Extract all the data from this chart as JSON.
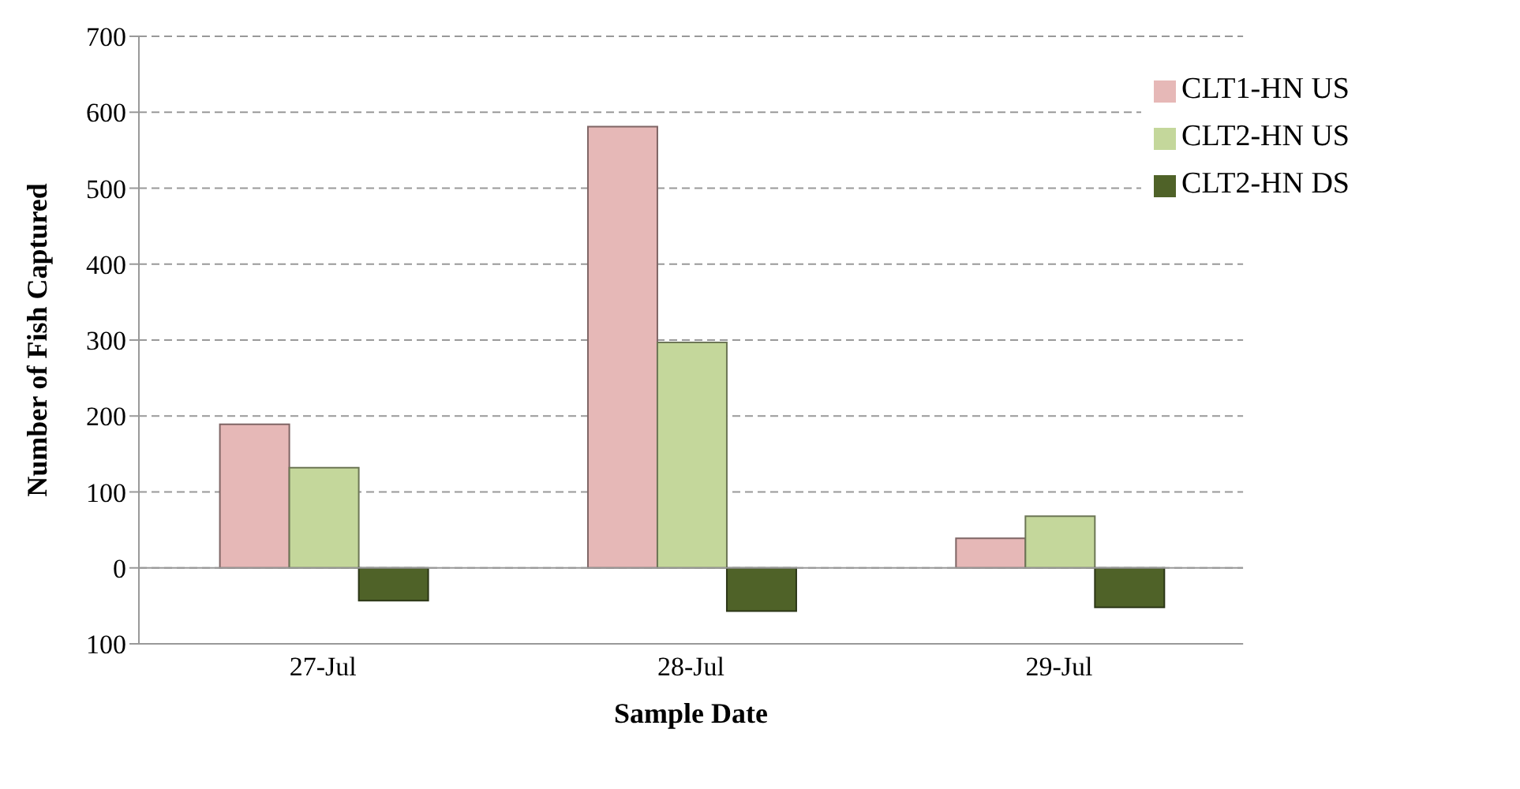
{
  "chart_data": {
    "type": "bar",
    "xlabel": "Sample Date",
    "ylabel": "Number of Fish Captured",
    "categories": [
      "27-Jul",
      "28-Jul",
      "29-Jul"
    ],
    "series": [
      {
        "name": "CLT1-HN US",
        "color": "#e6b8b7",
        "values": [
          189,
          581,
          39
        ]
      },
      {
        "name": "CLT2-HN US",
        "color": "#c4d79b",
        "values": [
          132,
          297,
          68
        ]
      },
      {
        "name": "CLT2-HN DS",
        "color": "#4f6228",
        "values": [
          -43,
          -57,
          -52
        ]
      }
    ],
    "ylim": [
      -100,
      700
    ],
    "yticks": [
      {
        "value": -100,
        "label": "100"
      },
      0,
      100,
      200,
      300,
      400,
      500,
      600,
      700
    ],
    "grid": "y",
    "legend": "top right"
  }
}
